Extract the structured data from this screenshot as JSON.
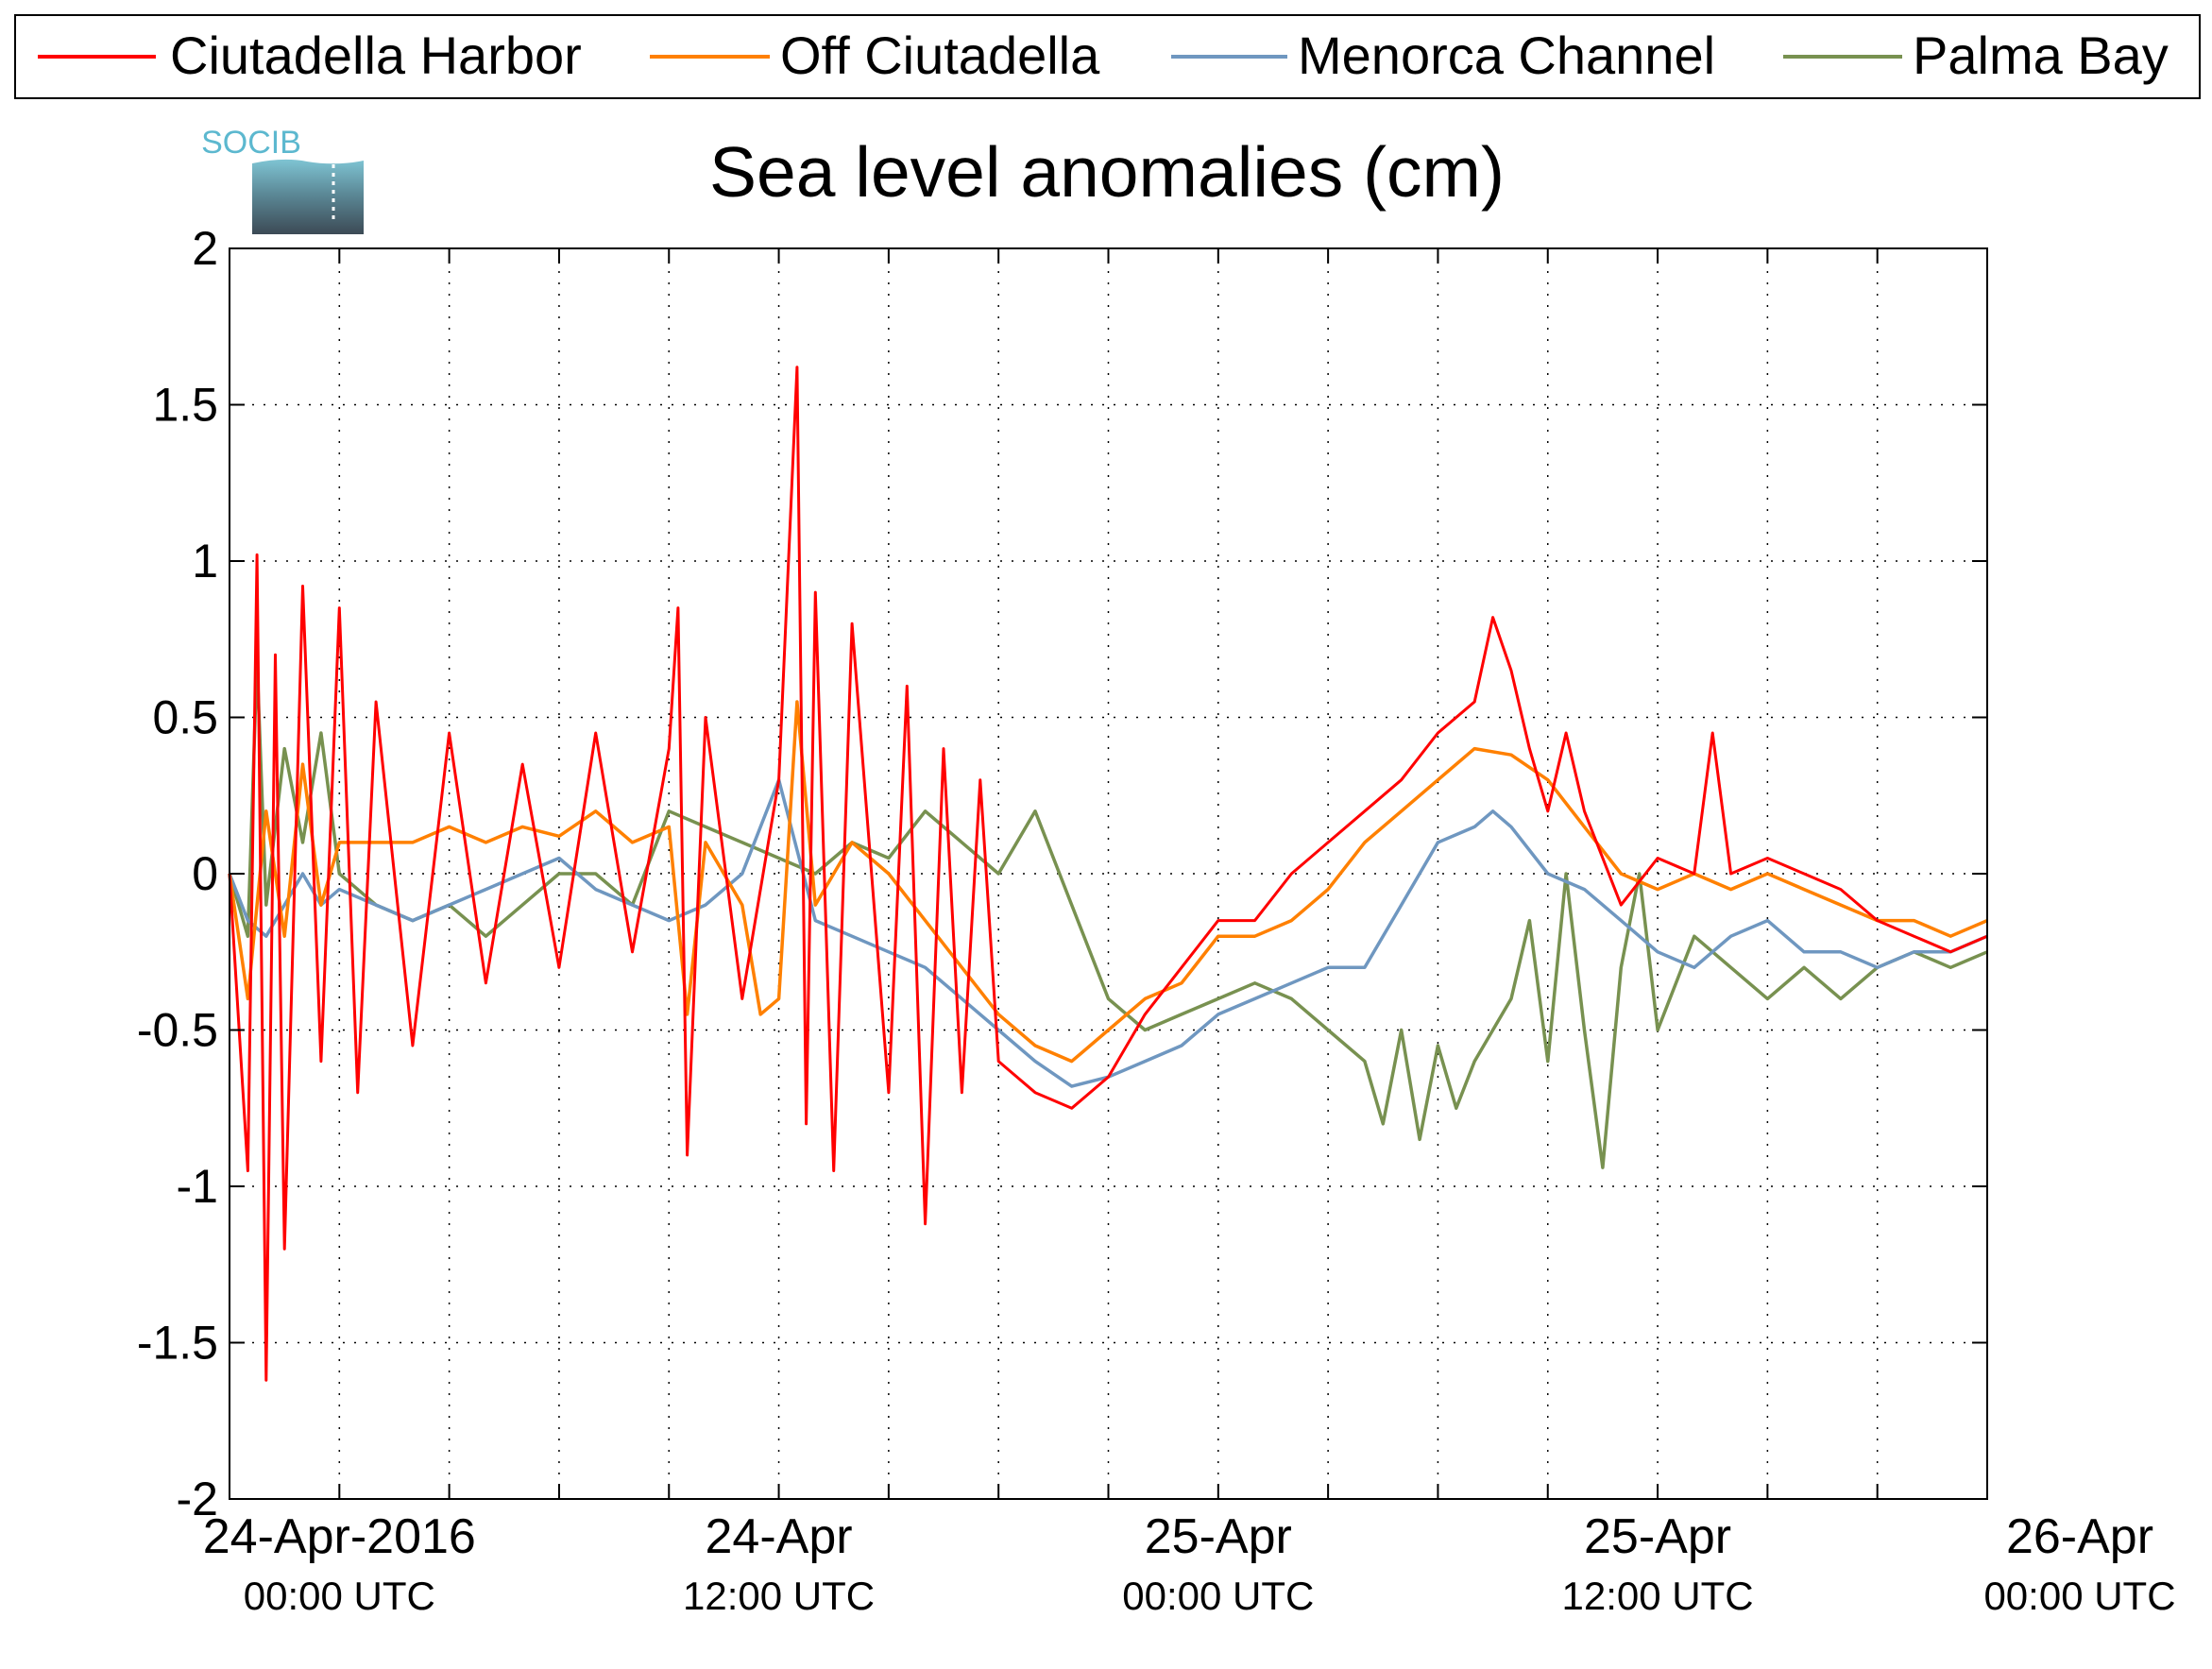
{
  "logo": {
    "text": "SOCIB"
  },
  "chart_data": {
    "type": "line",
    "title": "Sea level anomalies (cm)",
    "xlabel": "",
    "ylabel": "",
    "ylim": [
      -2,
      2
    ],
    "xlim_hours": [
      -6,
      90
    ],
    "yticks": [
      2,
      1.5,
      1,
      0.5,
      0,
      -0.5,
      -1,
      -1.5,
      -2
    ],
    "ytick_labels": [
      "2",
      "1.5",
      "1",
      "0.5",
      "0",
      "-0.5",
      "-1",
      "-1.5",
      "-2"
    ],
    "xtick_labels": [
      {
        "hour": 0,
        "line1": "24-Apr-2016",
        "line2": "00:00 UTC"
      },
      {
        "hour": 24,
        "line1": "24-Apr",
        "line2": "12:00 UTC"
      },
      {
        "hour": 48,
        "line1": "25-Apr",
        "line2": "00:00 UTC"
      },
      {
        "hour": 72,
        "line1": "25-Apr",
        "line2": "12:00 UTC"
      },
      {
        "hour": 96,
        "line1": "26-Apr",
        "line2": "00:00 UTC"
      }
    ],
    "minor_tick_hours": [
      0,
      6,
      12,
      18,
      24,
      30,
      36,
      42,
      48,
      54,
      60,
      66,
      72,
      78,
      84,
      90
    ],
    "grid": true,
    "legend_position": "top",
    "series": [
      {
        "name": "Ciutadella Harbor",
        "color": "#ff0000",
        "x": [
          -6,
          -5,
          -4.5,
          -4,
          -3.5,
          -3,
          -2,
          -1,
          0,
          1,
          2,
          4,
          6,
          8,
          10,
          12,
          14,
          16,
          18,
          18.5,
          19,
          20,
          22,
          24,
          25,
          25.5,
          26,
          27,
          28,
          30,
          31,
          32,
          33,
          34,
          35,
          36,
          38,
          40,
          42,
          44,
          46,
          48,
          50,
          52,
          54,
          56,
          58,
          60,
          62,
          63,
          64,
          65,
          66,
          67,
          68,
          70,
          72,
          74,
          75,
          76,
          78,
          80,
          82,
          84,
          86,
          88,
          90
        ],
        "y": [
          0.0,
          -0.95,
          1.02,
          -1.62,
          0.7,
          -1.2,
          0.92,
          -0.6,
          0.85,
          -0.7,
          0.55,
          -0.55,
          0.45,
          -0.35,
          0.35,
          -0.3,
          0.45,
          -0.25,
          0.4,
          0.85,
          -0.9,
          0.5,
          -0.4,
          0.3,
          1.62,
          -0.8,
          0.9,
          -0.95,
          0.8,
          -0.7,
          0.6,
          -1.12,
          0.4,
          -0.7,
          0.3,
          -0.6,
          -0.7,
          -0.75,
          -0.65,
          -0.45,
          -0.3,
          -0.15,
          -0.15,
          0.0,
          0.1,
          0.2,
          0.3,
          0.45,
          0.55,
          0.82,
          0.65,
          0.4,
          0.2,
          0.45,
          0.2,
          -0.1,
          0.05,
          0.0,
          0.45,
          0.0,
          0.05,
          0.0,
          -0.05,
          -0.15,
          -0.2,
          -0.25,
          -0.2
        ]
      },
      {
        "name": "Off Ciutadella",
        "color": "#ff8000",
        "x": [
          -6,
          -5,
          -4,
          -3,
          -2,
          -1,
          0,
          2,
          4,
          6,
          8,
          10,
          12,
          14,
          16,
          18,
          19,
          20,
          22,
          23,
          24,
          25,
          26,
          28,
          30,
          32,
          34,
          36,
          38,
          40,
          42,
          44,
          46,
          48,
          50,
          52,
          54,
          56,
          58,
          60,
          62,
          64,
          66,
          68,
          70,
          72,
          74,
          76,
          78,
          80,
          82,
          84,
          86,
          88,
          90
        ],
        "y": [
          0.0,
          -0.4,
          0.2,
          -0.2,
          0.35,
          -0.1,
          0.1,
          0.1,
          0.1,
          0.15,
          0.1,
          0.15,
          0.12,
          0.2,
          0.1,
          0.15,
          -0.45,
          0.1,
          -0.1,
          -0.45,
          -0.4,
          0.55,
          -0.1,
          0.1,
          0.0,
          -0.15,
          -0.3,
          -0.45,
          -0.55,
          -0.6,
          -0.5,
          -0.4,
          -0.35,
          -0.2,
          -0.2,
          -0.15,
          -0.05,
          0.1,
          0.2,
          0.3,
          0.4,
          0.38,
          0.3,
          0.15,
          0.0,
          -0.05,
          0.0,
          -0.05,
          0.0,
          -0.05,
          -0.1,
          -0.15,
          -0.15,
          -0.2,
          -0.15
        ]
      },
      {
        "name": "Menorca Channel",
        "color": "#6f97c0",
        "x": [
          -6,
          -5,
          -4,
          -3,
          -2,
          -1,
          0,
          2,
          4,
          6,
          8,
          10,
          12,
          14,
          16,
          18,
          20,
          22,
          24,
          26,
          28,
          30,
          32,
          34,
          36,
          38,
          40,
          42,
          44,
          46,
          48,
          50,
          52,
          54,
          56,
          58,
          60,
          62,
          63,
          64,
          66,
          68,
          70,
          72,
          74,
          76,
          78,
          80,
          82,
          84,
          86,
          88,
          90
        ],
        "y": [
          0.0,
          -0.15,
          -0.2,
          -0.1,
          0.0,
          -0.1,
          -0.05,
          -0.1,
          -0.15,
          -0.1,
          -0.05,
          0.0,
          0.05,
          -0.05,
          -0.1,
          -0.15,
          -0.1,
          0.0,
          0.3,
          -0.15,
          -0.2,
          -0.25,
          -0.3,
          -0.4,
          -0.5,
          -0.6,
          -0.68,
          -0.65,
          -0.6,
          -0.55,
          -0.45,
          -0.4,
          -0.35,
          -0.3,
          -0.3,
          -0.1,
          0.1,
          0.15,
          0.2,
          0.15,
          0.0,
          -0.05,
          -0.15,
          -0.25,
          -0.3,
          -0.2,
          -0.15,
          -0.25,
          -0.25,
          -0.3,
          -0.25,
          -0.25,
          -0.2
        ]
      },
      {
        "name": "Palma Bay",
        "color": "#789150",
        "x": [
          -6,
          -5,
          -4.5,
          -4,
          -3,
          -2,
          -1,
          0,
          2,
          4,
          6,
          8,
          10,
          12,
          14,
          16,
          18,
          20,
          22,
          24,
          26,
          28,
          30,
          32,
          34,
          36,
          38,
          40,
          42,
          44,
          46,
          48,
          50,
          52,
          54,
          56,
          57,
          58,
          59,
          60,
          61,
          62,
          64,
          65,
          66,
          67,
          68,
          69,
          70,
          71,
          72,
          74,
          76,
          78,
          80,
          82,
          84,
          86,
          88,
          90
        ],
        "y": [
          0.0,
          -0.2,
          0.68,
          -0.1,
          0.4,
          0.1,
          0.45,
          0.0,
          -0.1,
          -0.15,
          -0.1,
          -0.2,
          -0.1,
          0.0,
          0.0,
          -0.1,
          0.2,
          0.15,
          0.1,
          0.05,
          0.0,
          0.1,
          0.05,
          0.2,
          0.1,
          0.0,
          0.2,
          -0.1,
          -0.4,
          -0.5,
          -0.45,
          -0.4,
          -0.35,
          -0.4,
          -0.5,
          -0.6,
          -0.8,
          -0.5,
          -0.85,
          -0.55,
          -0.75,
          -0.6,
          -0.4,
          -0.15,
          -0.6,
          0.0,
          -0.5,
          -0.94,
          -0.3,
          0.0,
          -0.5,
          -0.2,
          -0.3,
          -0.4,
          -0.3,
          -0.4,
          -0.3,
          -0.25,
          -0.3,
          -0.25
        ]
      }
    ]
  }
}
